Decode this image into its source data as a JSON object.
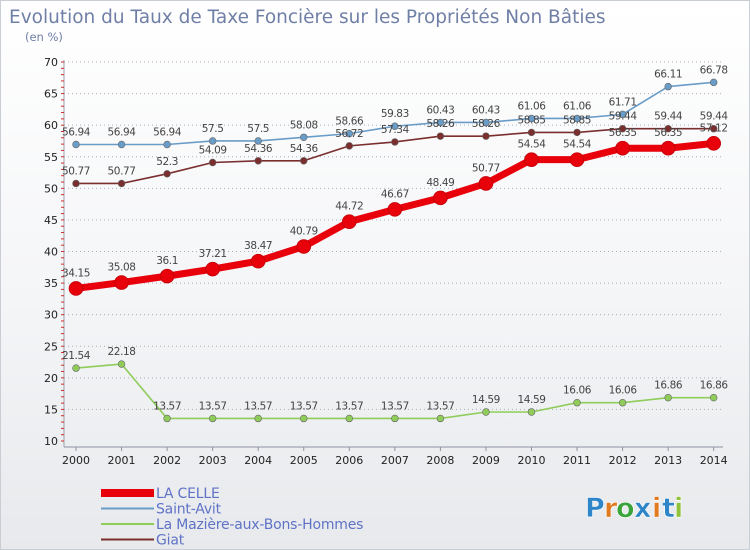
{
  "chart_data": {
    "type": "line",
    "title": "Evolution du Taux de Taxe Foncière sur les Propriétés Non Bâties",
    "ylabel": "(en %)",
    "xlabel": "",
    "x": [
      "2000",
      "2001",
      "2002",
      "2003",
      "2004",
      "2005",
      "2006",
      "2007",
      "2008",
      "2009",
      "2010",
      "2011",
      "2012",
      "2013",
      "2014"
    ],
    "ylim": [
      10,
      70
    ],
    "yticks": [
      "10",
      "15",
      "20",
      "25",
      "30",
      "35",
      "40",
      "45",
      "50",
      "55",
      "60",
      "65",
      "70"
    ],
    "grid": "horizontal dotted",
    "legend_position": "bottom-left",
    "series": [
      {
        "name": "LA CELLE",
        "color": "#e8000b",
        "values": [
          34.15,
          35.08,
          36.1,
          37.21,
          38.47,
          40.79,
          44.72,
          46.67,
          48.49,
          50.77,
          54.54,
          54.54,
          56.35,
          56.35,
          57.12
        ],
        "labels": [
          "34.15",
          "35.08",
          "36.1",
          "37.21",
          "38.47",
          "40.79",
          "44.72",
          "46.67",
          "48.49",
          "50.77",
          "54.54",
          "54.54",
          "56.35",
          "56.35",
          "57.12"
        ]
      },
      {
        "name": "Saint-Avit",
        "color": "#6a9cc8",
        "values": [
          56.94,
          56.94,
          56.94,
          57.5,
          57.5,
          58.08,
          58.66,
          59.83,
          60.43,
          60.43,
          61.06,
          61.06,
          61.71,
          66.11,
          66.78
        ],
        "labels": [
          "56.94",
          "56.94",
          "56.94",
          "57.5",
          "57.5",
          "58.08",
          "58.66",
          "59.83",
          "60.43",
          "60.43",
          "61.06",
          "61.06",
          "61.71",
          "66.11",
          "66.78"
        ]
      },
      {
        "name": "La Mazière-aux-Bons-Hommes",
        "color": "#8fcc5a",
        "values": [
          21.54,
          22.18,
          13.57,
          13.57,
          13.57,
          13.57,
          13.57,
          13.57,
          13.57,
          14.59,
          14.59,
          16.06,
          16.06,
          16.86,
          16.86
        ],
        "labels": [
          "21.54",
          "22.18",
          "13.57",
          "13.57",
          "13.57",
          "13.57",
          "13.57",
          "13.57",
          "13.57",
          "14.59",
          "14.59",
          "16.06",
          "16.06",
          "16.86",
          "16.86"
        ]
      },
      {
        "name": "Giat",
        "color": "#7a2e2e",
        "values": [
          50.77,
          50.77,
          52.3,
          54.09,
          54.36,
          54.36,
          56.72,
          57.34,
          58.26,
          58.26,
          58.85,
          58.85,
          59.44,
          59.44,
          59.44
        ],
        "labels": [
          "50.77",
          "50.77",
          "52.3",
          "54.09",
          "54.36",
          "54.36",
          "56.72",
          "57.34",
          "58.26",
          "58.26",
          "58.85",
          "58.85",
          "59.44",
          "59.44",
          "59.44"
        ]
      }
    ]
  },
  "legend": [
    {
      "label": "LA CELLE",
      "color": "#e8000b"
    },
    {
      "label": "Saint-Avit",
      "color": "#6a9cc8"
    },
    {
      "label": "La Mazière-aux-Bons-Hommes",
      "color": "#8fcc5a"
    },
    {
      "label": "Giat",
      "color": "#7a2e2e"
    }
  ],
  "brand": {
    "letters": [
      "P",
      "r",
      "o",
      "x",
      "i",
      "t",
      "i"
    ],
    "colors": [
      "#2e86c8",
      "#e07a1f",
      "#3aa33a",
      "#2e86c8",
      "#e07a1f",
      "#2e86c8",
      "#8fc23a"
    ]
  }
}
